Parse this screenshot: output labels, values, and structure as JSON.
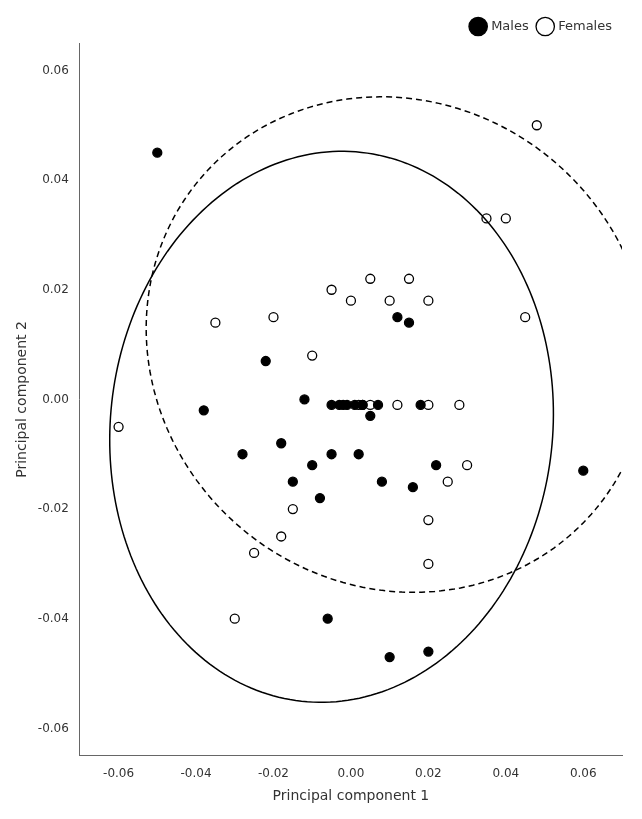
{
  "chart_data": {
    "type": "scatter",
    "xlabel": "Principal component 1",
    "ylabel": "Principal component 2",
    "series": [
      {
        "name": "Males",
        "color": "black",
        "marker": "filled_circle",
        "x": [
          -0.022,
          -0.028,
          -0.015,
          -0.01,
          -0.005,
          -0.018,
          -0.012,
          -0.008,
          0.002,
          0.005,
          0.008,
          0.012,
          0.015,
          0.018,
          0.022,
          0.001,
          -0.003,
          -0.001,
          0.003,
          -0.006,
          0.01,
          0.016,
          0.02,
          -0.05,
          0.06,
          -0.005,
          0.003,
          -0.002,
          0.007,
          -0.038
        ],
        "values": [
          0.007,
          -0.01,
          -0.015,
          -0.012,
          -0.01,
          -0.008,
          0.0,
          -0.018,
          -0.01,
          -0.003,
          -0.015,
          0.015,
          0.014,
          -0.001,
          -0.012,
          -0.001,
          -0.001,
          -0.001,
          -0.001,
          -0.04,
          -0.047,
          -0.016,
          -0.046,
          0.045,
          -0.013,
          -0.001,
          -0.001,
          -0.001,
          -0.001,
          -0.002
        ],
        "ellipse": {
          "cx": -0.005,
          "cy": -0.005,
          "width": 0.115,
          "height": 0.1,
          "angle": 10,
          "line_style": "solid"
        }
      },
      {
        "name": "Females",
        "color": "black",
        "marker": "open_circle",
        "x": [
          -0.06,
          -0.035,
          -0.03,
          -0.025,
          -0.02,
          -0.015,
          -0.01,
          -0.005,
          0.0,
          0.005,
          0.01,
          0.015,
          0.02,
          0.025,
          0.03,
          0.035,
          0.04,
          0.045,
          0.048,
          -0.018,
          0.002,
          0.005,
          0.012,
          0.02,
          0.028,
          0.02,
          0.02
        ],
        "values": [
          -0.005,
          0.014,
          -0.04,
          -0.028,
          0.015,
          -0.02,
          0.008,
          0.02,
          0.018,
          0.022,
          0.018,
          0.022,
          0.018,
          -0.015,
          -0.012,
          0.033,
          0.033,
          0.015,
          0.05,
          -0.025,
          -0.001,
          -0.001,
          -0.001,
          -0.001,
          -0.001,
          -0.022,
          -0.03
        ],
        "ellipse": {
          "cx": 0.012,
          "cy": 0.01,
          "width": 0.13,
          "height": 0.09,
          "angle": -5,
          "line_style": "dashed"
        }
      }
    ],
    "xlim": [
      -0.07,
      0.07
    ],
    "ylim": [
      -0.065,
      0.065
    ],
    "xticks": [
      -0.06,
      -0.04,
      -0.02,
      {
        "value": 0,
        "label": "0.00"
      },
      0.02,
      0.04,
      0.06
    ],
    "yticks": [
      -0.06,
      -0.04,
      -0.02,
      {
        "value": 0,
        "label": "0.00"
      },
      0.02,
      0.04,
      0.06
    ],
    "grid": false,
    "legend": "upper right"
  }
}
